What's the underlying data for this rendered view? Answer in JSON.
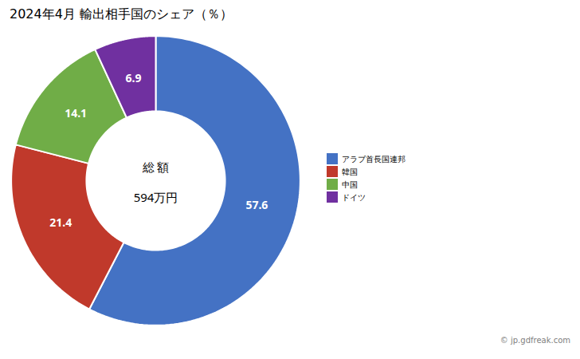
{
  "chart_data": {
    "type": "pie",
    "title": "2024年4月 輸出相手国のシェア（％）",
    "categories": [
      "アラブ首長国連邦",
      "韓国",
      "中国",
      "ドイツ"
    ],
    "values": [
      57.6,
      21.4,
      14.1,
      6.9
    ],
    "colors": [
      "#4472C4",
      "#C0392B",
      "#70AD47",
      "#7030A0"
    ],
    "data_labels": true,
    "legend": "right",
    "annotations": [
      "総 額",
      "594万円"
    ],
    "caption": "© jp.gdfreak.com"
  }
}
